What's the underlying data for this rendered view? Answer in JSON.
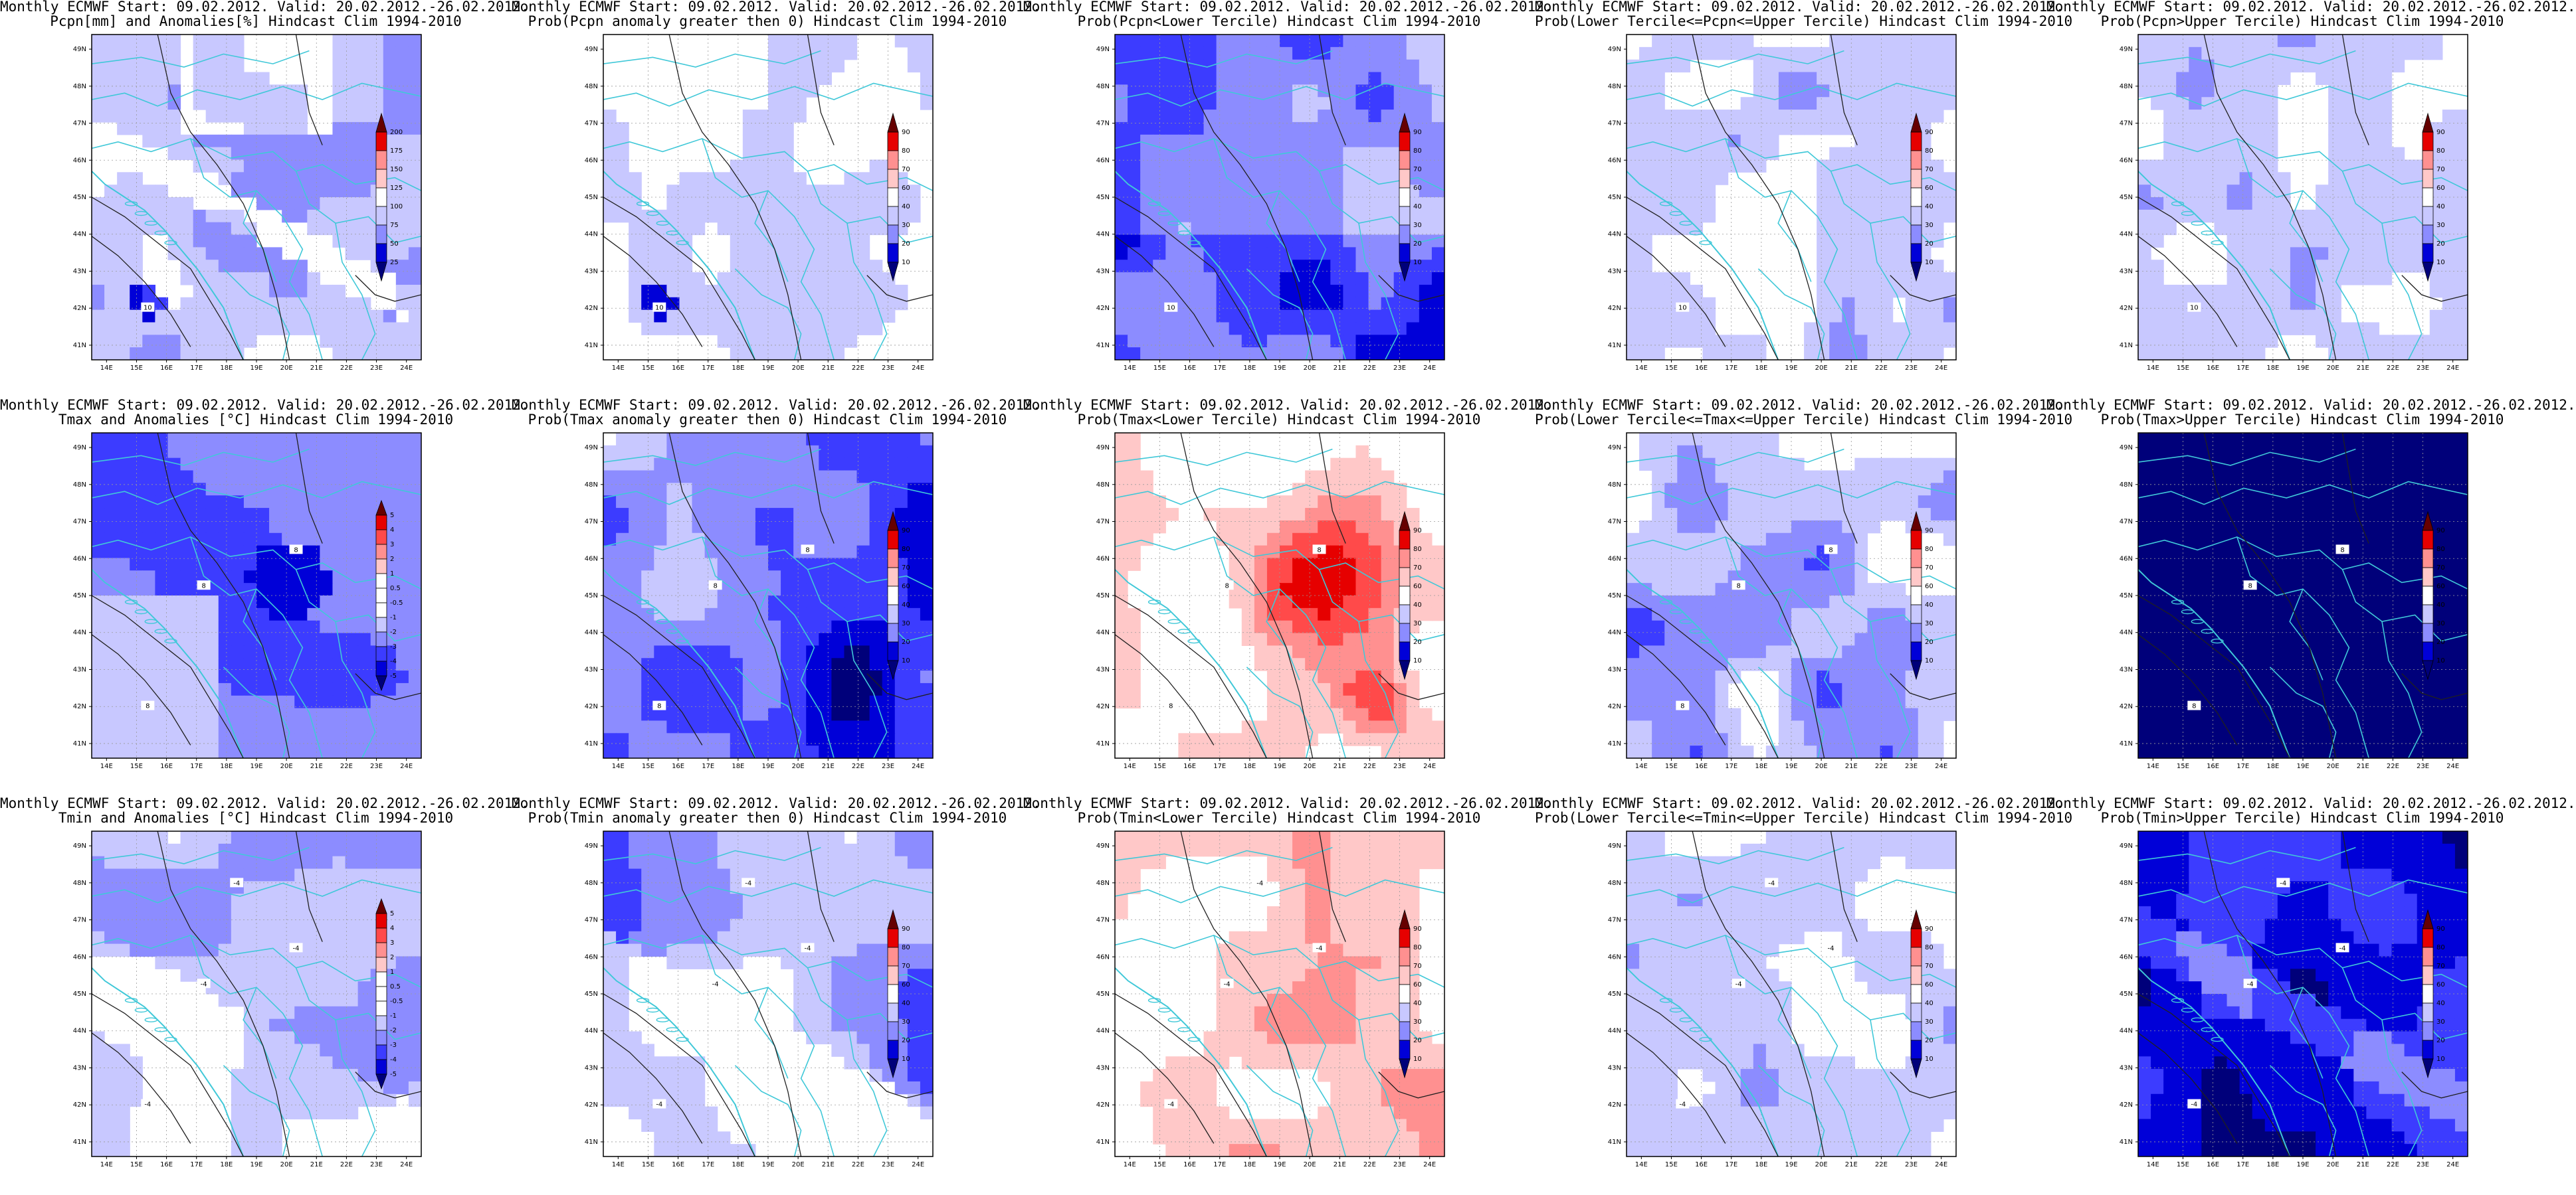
{
  "figure": {
    "rows": [
      {
        "panels": [
          {
            "title_line1": "Monthly ECMWF Start: 09.02.2012. Valid: 20.02.2012.-26.02.2012.",
            "title_line2": "Pcpn[mm] and Anomalies[%] Hindcast Clim 1994-2010",
            "field": "pcpn_anom",
            "colorbar": {
              "labels": [
                "200",
                "175",
                "150",
                "125",
                "100",
                "75",
                "50",
                "25"
              ]
            },
            "contour_labels": [
              "10"
            ]
          },
          {
            "title_line1": "Monthly ECMWF Start: 09.02.2012. Valid: 20.02.2012.-26.02.2012.",
            "title_line2": "Prob(Pcpn anomaly greater then 0) Hindcast Clim 1994-2010",
            "field": "pcpn_prob_pos",
            "colorbar": {
              "labels": [
                "90",
                "80",
                "70",
                "60",
                "40",
                "30",
                "20",
                "10"
              ]
            },
            "contour_labels": [
              "10"
            ]
          },
          {
            "title_line1": "Monthly ECMWF Start: 09.02.2012. Valid: 20.02.2012.-26.02.2012.",
            "title_line2": "Prob(Pcpn<Lower Tercile) Hindcast Clim 1994-2010",
            "field": "pcpn_prob_lower",
            "colorbar": {
              "labels": [
                "90",
                "80",
                "70",
                "60",
                "40",
                "30",
                "20",
                "10"
              ]
            },
            "contour_labels": [
              "10"
            ]
          },
          {
            "title_line1": "Monthly ECMWF Start: 09.02.2012. Valid: 20.02.2012.-26.02.2012.",
            "title_line2": "Prob(Lower Tercile<=Pcpn<=Upper Tercile) Hindcast Clim 1994-2010",
            "field": "pcpn_prob_middle",
            "colorbar": {
              "labels": [
                "90",
                "80",
                "70",
                "60",
                "40",
                "30",
                "20",
                "10"
              ]
            },
            "contour_labels": [
              "10"
            ]
          },
          {
            "title_line1": "Monthly ECMWF Start: 09.02.2012. Valid: 20.02.2012.-26.02.2012.",
            "title_line2": "Prob(Pcpn>Upper Tercile) Hindcast Clim 1994-2010",
            "field": "pcpn_prob_upper",
            "colorbar": {
              "labels": [
                "90",
                "80",
                "70",
                "60",
                "40",
                "30",
                "20",
                "10"
              ]
            },
            "contour_labels": [
              "10"
            ]
          }
        ]
      },
      {
        "panels": [
          {
            "title_line1": "Monthly ECMWF Start: 09.02.2012. Valid: 20.02.2012.-26.02.2012.",
            "title_line2": "Tmax and Anomalies [°C] Hindcast Clim 1994-2010",
            "field": "tmax_anom",
            "colorbar": {
              "labels": [
                "5",
                "4",
                "3",
                "2",
                "1",
                "0.5",
                "-0.5",
                "-1",
                "-2",
                "-3",
                "-4",
                "-5"
              ]
            },
            "contour_labels": [
              "8",
              "8",
              "8"
            ]
          },
          {
            "title_line1": "Monthly ECMWF Start: 09.02.2012. Valid: 20.02.2012.-26.02.2012.",
            "title_line2": "Prob(Tmax anomaly greater then 0) Hindcast Clim 1994-2010",
            "field": "tmax_prob_pos",
            "colorbar": {
              "labels": [
                "90",
                "80",
                "70",
                "60",
                "40",
                "30",
                "20",
                "10"
              ]
            },
            "contour_labels": [
              "8",
              "8",
              "8"
            ]
          },
          {
            "title_line1": "Monthly ECMWF Start: 09.02.2012. Valid: 20.02.2012.-26.02.2012.",
            "title_line2": "Prob(Tmax<Lower Tercile) Hindcast Clim 1994-2010",
            "field": "tmax_prob_lower",
            "colorbar": {
              "labels": [
                "90",
                "80",
                "70",
                "60",
                "40",
                "30",
                "20",
                "10"
              ]
            },
            "contour_labels": [
              "8",
              "8",
              "8"
            ]
          },
          {
            "title_line1": "Monthly ECMWF Start: 09.02.2012. Valid: 20.02.2012.-26.02.2012.",
            "title_line2": "Prob(Lower Tercile<=Tmax<=Upper Tercile) Hindcast Clim 1994-2010",
            "field": "tmax_prob_middle",
            "colorbar": {
              "labels": [
                "90",
                "80",
                "70",
                "60",
                "40",
                "30",
                "20",
                "10"
              ]
            },
            "contour_labels": [
              "8",
              "8",
              "8"
            ]
          },
          {
            "title_line1": "Monthly ECMWF Start: 09.02.2012. Valid: 20.02.2012.-26.02.2012.",
            "title_line2": "Prob(Tmax>Upper Tercile) Hindcast Clim 1994-2010",
            "field": "tmax_prob_upper",
            "colorbar": {
              "labels": [
                "90",
                "80",
                "70",
                "60",
                "40",
                "30",
                "20",
                "10"
              ]
            },
            "contour_labels": [
              "8",
              "8",
              "8"
            ]
          }
        ]
      },
      {
        "panels": [
          {
            "title_line1": "Monthly ECMWF Start: 09.02.2012. Valid: 20.02.2012.-26.02.2012.",
            "title_line2": "Tmin and Anomalies [°C] Hindcast Clim 1994-2010",
            "field": "tmin_anom",
            "colorbar": {
              "labels": [
                "5",
                "4",
                "3",
                "2",
                "1",
                "0.5",
                "-0.5",
                "-1",
                "-2",
                "-3",
                "-4",
                "-5"
              ]
            },
            "contour_labels": [
              "-4",
              "-4",
              "-4",
              "-4"
            ]
          },
          {
            "title_line1": "Monthly ECMWF Start: 09.02.2012. Valid: 20.02.2012.-26.02.2012.",
            "title_line2": "Prob(Tmin anomaly greater then 0) Hindcast Clim 1994-2010",
            "field": "tmin_prob_pos",
            "colorbar": {
              "labels": [
                "90",
                "80",
                "70",
                "60",
                "40",
                "30",
                "20",
                "10"
              ]
            },
            "contour_labels": [
              "-4",
              "-4",
              "-4",
              "-4"
            ]
          },
          {
            "title_line1": "Monthly ECMWF Start: 09.02.2012. Valid: 20.02.2012.-26.02.2012.",
            "title_line2": "Prob(Tmin<Lower Tercile) Hindcast Clim 1994-2010",
            "field": "tmin_prob_lower",
            "colorbar": {
              "labels": [
                "90",
                "80",
                "70",
                "60",
                "40",
                "30",
                "20",
                "10"
              ]
            },
            "contour_labels": [
              "-4",
              "-4",
              "-4",
              "-4"
            ]
          },
          {
            "title_line1": "Monthly ECMWF Start: 09.02.2012. Valid: 20.02.2012.-26.02.2012.",
            "title_line2": "Prob(Lower Tercile<=Tmin<=Upper Tercile) Hindcast Clim 1994-2010",
            "field": "tmin_prob_middle",
            "colorbar": {
              "labels": [
                "90",
                "80",
                "70",
                "60",
                "40",
                "30",
                "20",
                "10"
              ]
            },
            "contour_labels": [
              "-4",
              "-4",
              "-4",
              "-4"
            ]
          },
          {
            "title_line1": "Monthly ECMWF Start: 09.02.2012. Valid: 20.02.2012.-26.02.2012.",
            "title_line2": "Prob(Tmin>Upper Tercile) Hindcast Clim 1994-2010",
            "field": "tmin_prob_upper",
            "colorbar": {
              "labels": [
                "90",
                "80",
                "70",
                "60",
                "40",
                "30",
                "20",
                "10"
              ]
            },
            "contour_labels": [
              "-4",
              "-4",
              "-4",
              "-4"
            ]
          }
        ]
      }
    ],
    "axes": {
      "lon_labels": [
        "14E",
        "15E",
        "16E",
        "17E",
        "18E",
        "19E",
        "20E",
        "21E",
        "22E",
        "23E",
        "24E"
      ],
      "lat_labels": [
        "49N",
        "48N",
        "47N",
        "46N",
        "45N",
        "44N",
        "43N",
        "42N",
        "41N"
      ]
    },
    "colors": {
      "palette": [
        "#00007a",
        "#0000d8",
        "#3c3cff",
        "#8c8cff",
        "#c8c8ff",
        "#ffffff",
        "#ffc8c8",
        "#ff9090",
        "#ff4a4a",
        "#e60000",
        "#a00000",
        "#660000"
      ],
      "border_color": "#40c8d8",
      "contour_color": "#202020"
    }
  }
}
